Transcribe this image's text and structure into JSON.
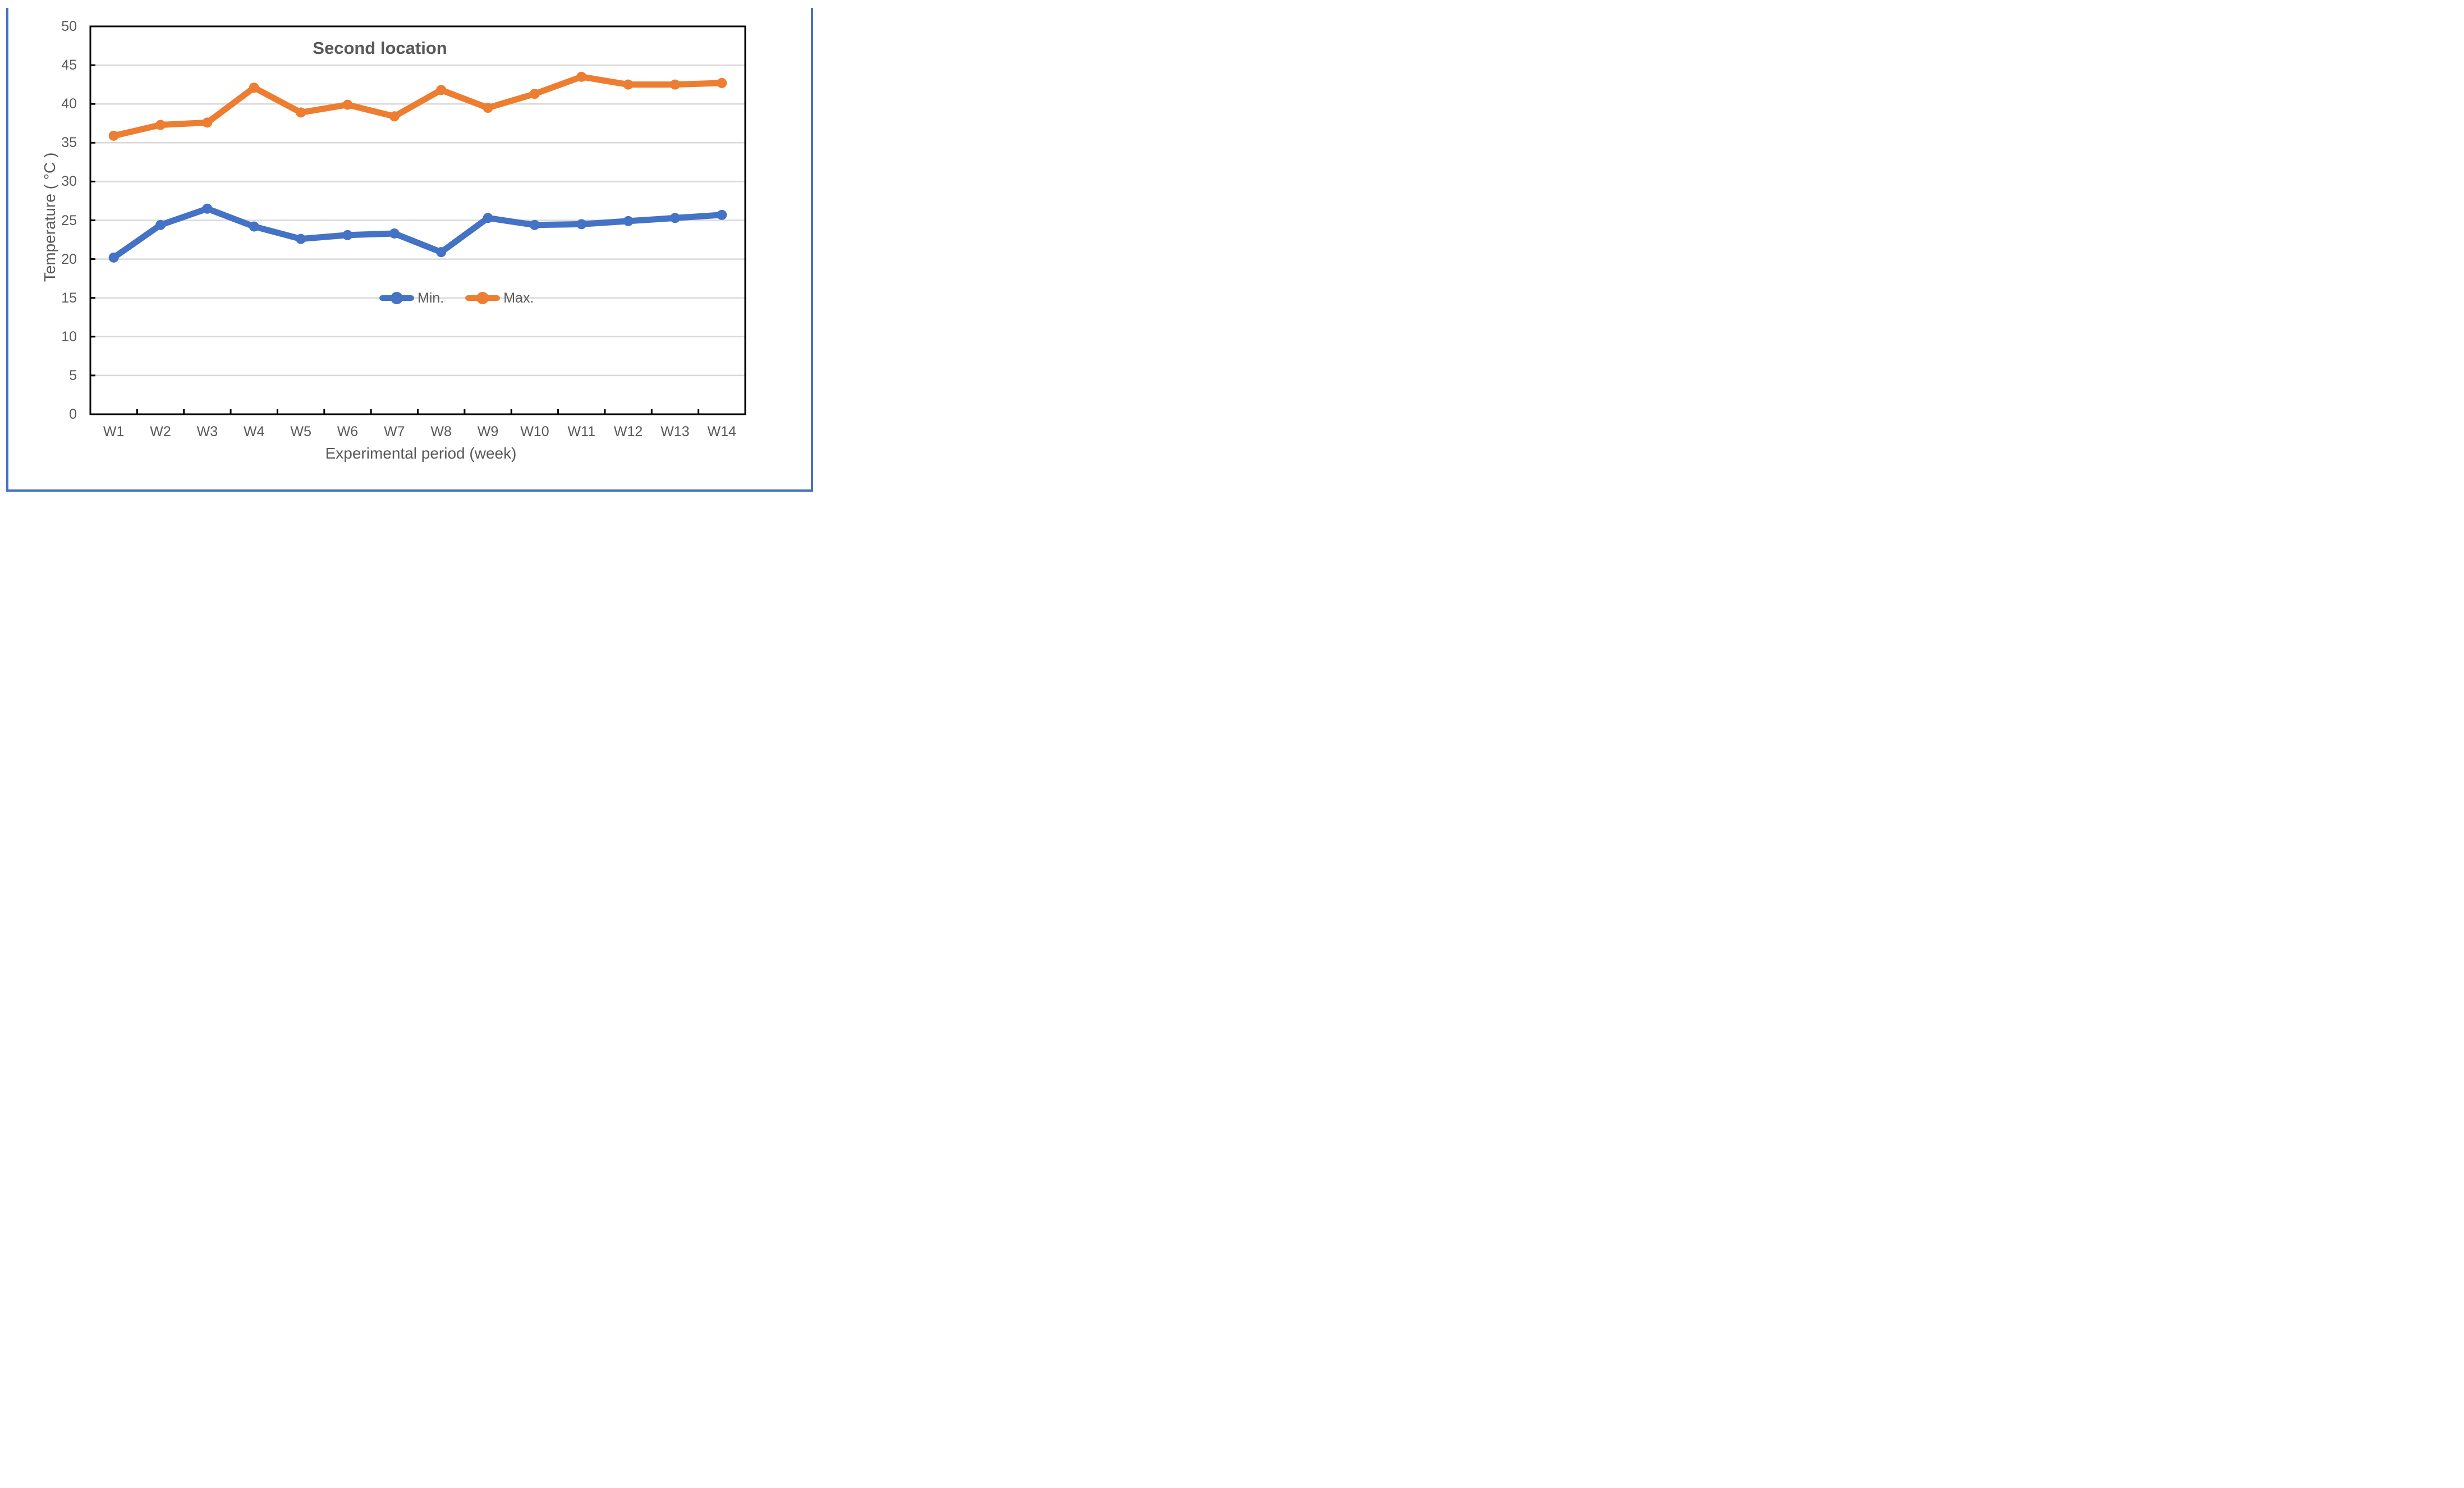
{
  "page": {
    "background_color": "#FFFFFF",
    "border_color": "#4472C4"
  },
  "chart_data": {
    "type": "line",
    "title": "Second location",
    "xlabel": "Experimental period (week)",
    "ylabel": "Temperature ( °C )",
    "categories": [
      "W1",
      "W2",
      "W3",
      "W4",
      "W5",
      "W6",
      "W7",
      "W8",
      "W9",
      "W10",
      "W11",
      "W12",
      "W13",
      "W14"
    ],
    "series": [
      {
        "name": "Min.",
        "color": "#4472C4",
        "values": [
          20.2,
          24.4,
          26.5,
          24.2,
          22.6,
          23.1,
          23.3,
          20.9,
          25.3,
          24.4,
          24.5,
          24.9,
          25.3,
          25.7
        ]
      },
      {
        "name": "Max.",
        "color": "#ED7D31",
        "values": [
          35.9,
          37.3,
          37.6,
          42.1,
          38.9,
          39.9,
          38.4,
          41.8,
          39.5,
          41.3,
          43.5,
          42.5,
          42.5,
          42.7
        ]
      }
    ],
    "ylim": [
      0,
      50
    ],
    "yticks": [
      0,
      5,
      10,
      15,
      20,
      25,
      30,
      35,
      40,
      45,
      50
    ],
    "grid": "horizontal",
    "legend_position": "inside-center",
    "gridline_color": "#D9D9D9",
    "axis_color": "#000000",
    "text_color": "#595959",
    "marker": "circle"
  }
}
